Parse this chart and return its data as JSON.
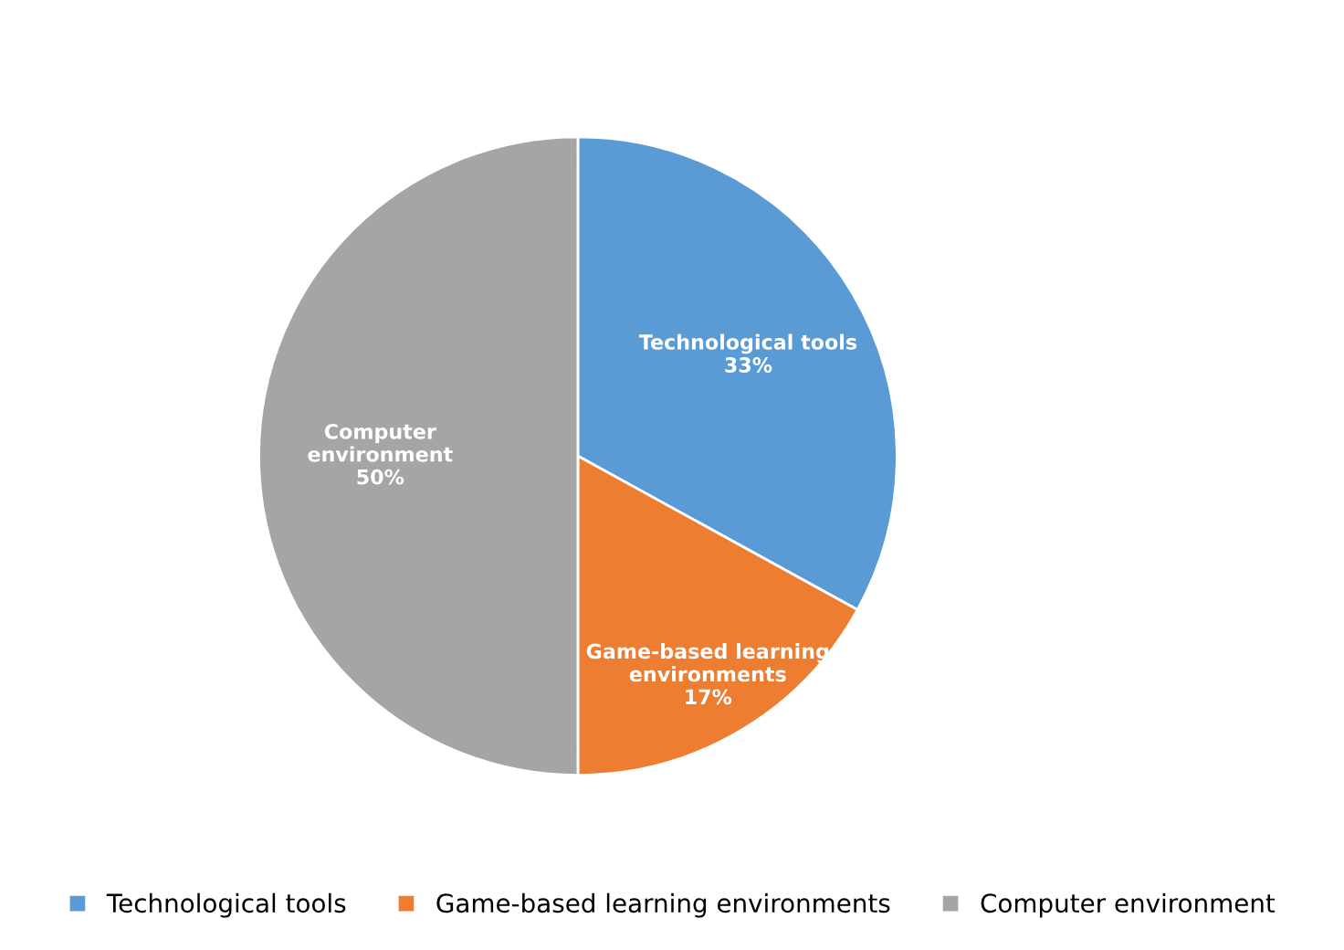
{
  "chart_data": {
    "type": "pie",
    "categories": [
      "Technological tools",
      "Game-based learning environments",
      "Computer environment"
    ],
    "values": [
      33,
      17,
      50
    ],
    "colors": [
      "#5b9bd5",
      "#ed7d31",
      "#a5a5a5"
    ],
    "value_labels": [
      "33%",
      "17%",
      "50%"
    ],
    "legend": "bottom"
  }
}
